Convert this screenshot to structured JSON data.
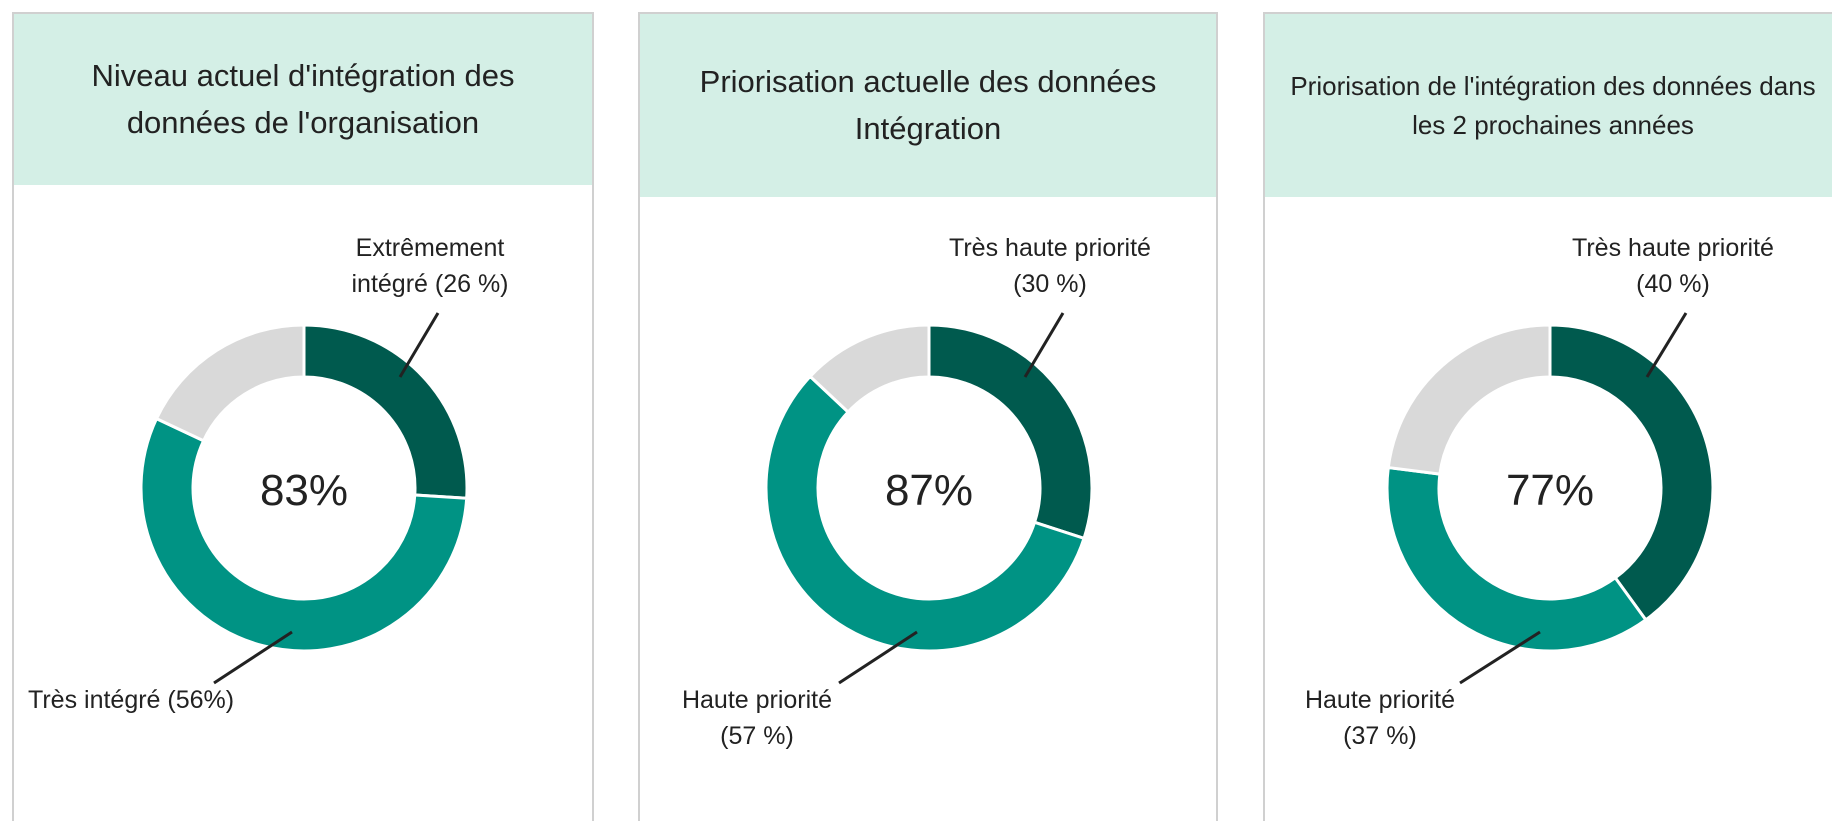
{
  "chart_data": [
    {
      "type": "donut",
      "title": "Niveau actuel d'intégration des données de l'organisation",
      "center_label": "83%",
      "categories": [
        "Extrêmement intégré (26 %)",
        "Très intégré (56%)",
        null
      ],
      "values": [
        26,
        56,
        18
      ],
      "colors": [
        "#005a4e",
        "#009384",
        "#d9d9d9"
      ]
    },
    {
      "type": "donut",
      "title": "Priorisation actuelle des données Intégration",
      "center_label": "87%",
      "categories": [
        "Très haute priorité (30 %)",
        "Haute priorité (57 %)",
        null
      ],
      "values": [
        30,
        57,
        13
      ],
      "colors": [
        "#005a4e",
        "#009384",
        "#d9d9d9"
      ]
    },
    {
      "type": "donut",
      "title": "Priorisation de l'intégration des données dans les 2 prochaines années",
      "center_label": "77%",
      "categories": [
        "Très haute priorité (40 %)",
        "Haute priorité (37 %)",
        null
      ],
      "values": [
        40,
        37,
        23
      ],
      "colors": [
        "#005a4e",
        "#009384",
        "#d9d9d9"
      ]
    }
  ]
}
